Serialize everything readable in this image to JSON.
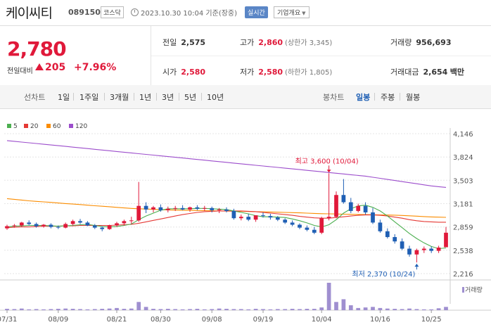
{
  "header": {
    "stock_name": "케이씨티",
    "stock_code": "089150",
    "market": "코스닥",
    "datetime": "2023.10.30 10:04 기준(장중)",
    "realtime_label": "실시간",
    "company_info_label": "기업개요"
  },
  "quote": {
    "price": "2,780",
    "change_label": "전일대비",
    "change_value": "205",
    "change_pct": "+7.96%",
    "prev_close_label": "전일",
    "prev_close": "2,575",
    "high_label": "고가",
    "high": "2,860",
    "upper_limit_text": "(상한가 3,345)",
    "volume_label": "거래량",
    "volume": "956,693",
    "open_label": "시가",
    "open": "2,580",
    "low_label": "저가",
    "low": "2,580",
    "lower_limit_text": "(하한가 1,805)",
    "amount_label": "거래대금",
    "amount": "2,654",
    "amount_unit": "백만"
  },
  "tabs": {
    "line_label": "선차트",
    "line_periods": [
      "1일",
      "1주일",
      "3개월",
      "1년",
      "3년",
      "5년",
      "10년"
    ],
    "candle_label": "봉차트",
    "candle_periods": [
      "일봉",
      "주봉",
      "월봉"
    ],
    "candle_active": "일봉"
  },
  "legend": [
    {
      "name": "5",
      "color": "#4caf50"
    },
    {
      "name": "20",
      "color": "#e53935"
    },
    {
      "name": "60",
      "color": "#fb8c00"
    },
    {
      "name": "120",
      "color": "#9c4dcc"
    }
  ],
  "colors": {
    "up": "#e0193a",
    "down": "#1f5fb4",
    "volume": "#9f8fd0"
  },
  "chart_data": {
    "type": "candlestick",
    "y_ticks": [
      "4,146",
      "3,824",
      "3,503",
      "3,181",
      "2,859",
      "2,538",
      "2,216"
    ],
    "y_tick_values": [
      4146,
      3824,
      3503,
      3181,
      2859,
      2538,
      2216
    ],
    "x_ticks": [
      "07/31",
      "08/09",
      "08/21",
      "08/30",
      "09/08",
      "09/19",
      "10/04",
      "10/16",
      "10/25"
    ],
    "x_tick_index": [
      0,
      7,
      15,
      21,
      28,
      35,
      43,
      51,
      58
    ],
    "high_annotation": "최고 3,600 (10/04)",
    "low_annotation": "최저 2,370 (10/24)",
    "volume_label": "거래량",
    "candles": [
      [
        2840,
        2890,
        2820,
        2870
      ],
      [
        2870,
        2900,
        2850,
        2880
      ],
      [
        2880,
        2930,
        2860,
        2920
      ],
      [
        2920,
        2950,
        2880,
        2900
      ],
      [
        2900,
        2920,
        2850,
        2870
      ],
      [
        2870,
        2900,
        2850,
        2890
      ],
      [
        2890,
        2910,
        2840,
        2860
      ],
      [
        2860,
        2880,
        2830,
        2850
      ],
      [
        2850,
        2920,
        2840,
        2900
      ],
      [
        2900,
        2960,
        2880,
        2940
      ],
      [
        2940,
        2970,
        2900,
        2920
      ],
      [
        2920,
        2940,
        2870,
        2880
      ],
      [
        2880,
        2900,
        2830,
        2850
      ],
      [
        2850,
        2870,
        2800,
        2830
      ],
      [
        2830,
        2890,
        2820,
        2880
      ],
      [
        2880,
        2930,
        2860,
        2910
      ],
      [
        2910,
        2960,
        2880,
        2940
      ],
      [
        2940,
        3000,
        2900,
        2950
      ],
      [
        2950,
        3480,
        2930,
        3150
      ],
      [
        3150,
        3200,
        3050,
        3100
      ],
      [
        3100,
        3150,
        3060,
        3130
      ],
      [
        3130,
        3170,
        3070,
        3090
      ],
      [
        3090,
        3140,
        3060,
        3110
      ],
      [
        3110,
        3150,
        3080,
        3120
      ],
      [
        3120,
        3160,
        3090,
        3100
      ],
      [
        3100,
        3140,
        3070,
        3130
      ],
      [
        3130,
        3160,
        3090,
        3110
      ],
      [
        3110,
        3150,
        3080,
        3120
      ],
      [
        3120,
        3140,
        3060,
        3090
      ],
      [
        3090,
        3120,
        3050,
        3100
      ],
      [
        3100,
        3130,
        3060,
        3080
      ],
      [
        3080,
        3110,
        2960,
        2980
      ],
      [
        2980,
        3030,
        2950,
        3000
      ],
      [
        3000,
        3040,
        2940,
        2960
      ],
      [
        2960,
        3010,
        2930,
        3020
      ],
      [
        3020,
        3060,
        2990,
        3010
      ],
      [
        3010,
        3040,
        2960,
        2990
      ],
      [
        2990,
        3010,
        2940,
        2960
      ],
      [
        2960,
        2980,
        2900,
        2920
      ],
      [
        2920,
        2950,
        2870,
        2890
      ],
      [
        2890,
        2910,
        2830,
        2850
      ],
      [
        2850,
        2880,
        2800,
        2820
      ],
      [
        2820,
        2860,
        2760,
        2780
      ],
      [
        2780,
        3000,
        2760,
        2980
      ],
      [
        2980,
        3600,
        2950,
        3000
      ],
      [
        3000,
        3350,
        2980,
        3300
      ],
      [
        3300,
        3520,
        3180,
        3200
      ],
      [
        3200,
        3260,
        3050,
        3080
      ],
      [
        3080,
        3180,
        3060,
        3150
      ],
      [
        3150,
        3200,
        3030,
        3060
      ],
      [
        3060,
        3120,
        2900,
        2920
      ],
      [
        2920,
        2960,
        2780,
        2800
      ],
      [
        2800,
        2840,
        2700,
        2720
      ],
      [
        2720,
        2760,
        2630,
        2660
      ],
      [
        2660,
        2700,
        2540,
        2560
      ],
      [
        2560,
        2600,
        2450,
        2480
      ],
      [
        2480,
        2560,
        2370,
        2540
      ],
      [
        2540,
        2590,
        2500,
        2560
      ],
      [
        2560,
        2590,
        2500,
        2530
      ],
      [
        2530,
        2600,
        2500,
        2575
      ],
      [
        2580,
        2860,
        2580,
        2780
      ]
    ],
    "ma5": [
      2860,
      2870,
      2875,
      2880,
      2880,
      2880,
      2875,
      2870,
      2875,
      2880,
      2890,
      2895,
      2880,
      2865,
      2860,
      2865,
      2880,
      2900,
      2960,
      3010,
      3050,
      3090,
      3110,
      3110,
      3110,
      3110,
      3115,
      3115,
      3110,
      3105,
      3100,
      3080,
      3060,
      3040,
      3015,
      3000,
      3000,
      2995,
      2990,
      2970,
      2945,
      2915,
      2880,
      2860,
      2890,
      2960,
      3050,
      3110,
      3150,
      3160,
      3130,
      3080,
      3010,
      2930,
      2850,
      2770,
      2700,
      2640,
      2590,
      2560,
      2570
    ],
    "ma20": [
      2850,
      2855,
      2860,
      2860,
      2865,
      2870,
      2870,
      2870,
      2875,
      2875,
      2880,
      2880,
      2880,
      2880,
      2880,
      2885,
      2890,
      2895,
      2910,
      2930,
      2950,
      2970,
      2990,
      3010,
      3030,
      3045,
      3060,
      3070,
      3075,
      3080,
      3080,
      3080,
      3080,
      3075,
      3070,
      3060,
      3050,
      3040,
      3030,
      3020,
      3005,
      2995,
      2985,
      2980,
      2980,
      2990,
      3000,
      3010,
      3020,
      3025,
      3025,
      3020,
      3010,
      2995,
      2980,
      2960,
      2945,
      2935,
      2930,
      2925,
      2925
    ],
    "ma60": [
      3250,
      3240,
      3230,
      3220,
      3212,
      3205,
      3198,
      3190,
      3182,
      3175,
      3168,
      3160,
      3152,
      3145,
      3138,
      3130,
      3122,
      3115,
      3110,
      3106,
      3102,
      3098,
      3095,
      3092,
      3090,
      3088,
      3086,
      3084,
      3082,
      3080,
      3078,
      3076,
      3074,
      3072,
      3070,
      3068,
      3066,
      3063,
      3060,
      3057,
      3054,
      3050,
      3046,
      3042,
      3040,
      3038,
      3036,
      3034,
      3032,
      3030,
      3028,
      3026,
      3024,
      3022,
      3018,
      3013,
      3008,
      3003,
      2998,
      2995,
      2992
    ],
    "ma120": [
      4050,
      4040,
      4030,
      4020,
      4010,
      4000,
      3990,
      3980,
      3970,
      3960,
      3950,
      3940,
      3930,
      3920,
      3910,
      3900,
      3890,
      3880,
      3870,
      3860,
      3850,
      3840,
      3830,
      3820,
      3810,
      3800,
      3790,
      3780,
      3770,
      3760,
      3750,
      3740,
      3730,
      3720,
      3710,
      3700,
      3690,
      3680,
      3670,
      3660,
      3650,
      3640,
      3630,
      3620,
      3610,
      3600,
      3590,
      3580,
      3570,
      3560,
      3545,
      3530,
      3515,
      3500,
      3485,
      3470,
      3455,
      3440,
      3425,
      3415,
      3405
    ],
    "volume": [
      5,
      4,
      6,
      3,
      4,
      3,
      4,
      5,
      6,
      5,
      4,
      3,
      4,
      5,
      6,
      8,
      5,
      6,
      30,
      12,
      5,
      4,
      5,
      4,
      3,
      4,
      5,
      3,
      4,
      6,
      5,
      4,
      4,
      3,
      5,
      4,
      3,
      4,
      4,
      5,
      4,
      5,
      5,
      10,
      100,
      30,
      40,
      18,
      8,
      10,
      12,
      8,
      6,
      5,
      4,
      6,
      4,
      3,
      3,
      7,
      12
    ]
  }
}
